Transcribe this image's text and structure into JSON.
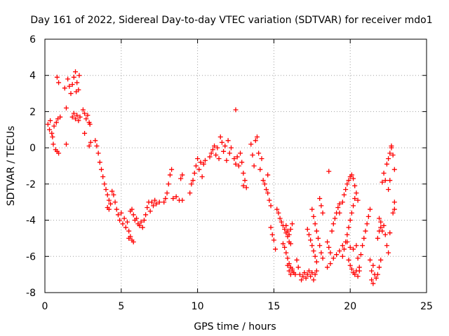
{
  "chart_data": {
    "type": "scatter",
    "title": "Day 161 of 2022, Sidereal Day-to-day VTEC variation (SDTVAR) for receiver mdo1",
    "xlabel": "GPS time / hours",
    "ylabel": "SDTVAR / TECUs",
    "xlim": [
      0,
      25
    ],
    "ylim": [
      -8,
      6
    ],
    "xticks": [
      0,
      5,
      10,
      15,
      20,
      25
    ],
    "yticks": [
      -8,
      -6,
      -4,
      -2,
      0,
      2,
      4,
      6
    ],
    "grid": true,
    "marker": "+",
    "color": "#ff0000",
    "series": [
      {
        "name": "SDTVAR",
        "points": [
          [
            0.2,
            1.3
          ],
          [
            0.3,
            1.0
          ],
          [
            0.35,
            1.5
          ],
          [
            0.45,
            0.8
          ],
          [
            0.5,
            0.6
          ],
          [
            0.55,
            0.2
          ],
          [
            0.6,
            1.2
          ],
          [
            0.7,
            -0.1
          ],
          [
            0.75,
            1.4
          ],
          [
            0.8,
            -0.2
          ],
          [
            0.85,
            1.6
          ],
          [
            0.9,
            -0.3
          ],
          [
            1.0,
            1.7
          ],
          [
            0.8,
            3.9
          ],
          [
            0.9,
            3.6
          ],
          [
            1.3,
            3.3
          ],
          [
            1.4,
            2.2
          ],
          [
            1.4,
            0.2
          ],
          [
            1.5,
            3.8
          ],
          [
            1.6,
            3.4
          ],
          [
            1.7,
            3.0
          ],
          [
            1.8,
            3.5
          ],
          [
            1.9,
            3.9
          ],
          [
            2.0,
            4.2
          ],
          [
            2.05,
            3.1
          ],
          [
            2.1,
            3.6
          ],
          [
            2.2,
            3.2
          ],
          [
            2.25,
            4.0
          ],
          [
            1.8,
            1.7
          ],
          [
            1.9,
            1.9
          ],
          [
            2.0,
            1.6
          ],
          [
            2.1,
            1.8
          ],
          [
            2.2,
            1.5
          ],
          [
            2.3,
            1.7
          ],
          [
            2.5,
            2.1
          ],
          [
            2.6,
            1.9
          ],
          [
            2.7,
            1.6
          ],
          [
            2.8,
            1.8
          ],
          [
            2.9,
            1.4
          ],
          [
            2.95,
            1.3
          ],
          [
            2.6,
            0.8
          ],
          [
            2.9,
            0.1
          ],
          [
            3.0,
            0.3
          ],
          [
            3.3,
            0.4
          ],
          [
            3.4,
            0.1
          ],
          [
            3.5,
            -0.3
          ],
          [
            3.6,
            -0.8
          ],
          [
            3.7,
            -1.2
          ],
          [
            3.8,
            -1.6
          ],
          [
            3.9,
            -2.0
          ],
          [
            4.0,
            -2.3
          ],
          [
            4.1,
            -2.6
          ],
          [
            4.2,
            -2.9
          ],
          [
            4.3,
            -3.1
          ],
          [
            4.4,
            -2.4
          ],
          [
            4.5,
            -2.6
          ],
          [
            4.6,
            -3.0
          ],
          [
            4.7,
            -3.4
          ],
          [
            4.8,
            -3.7
          ],
          [
            4.9,
            -4.0
          ],
          [
            5.0,
            -3.6
          ],
          [
            5.1,
            -4.2
          ],
          [
            5.2,
            -3.9
          ],
          [
            5.3,
            -4.4
          ],
          [
            5.4,
            -4.1
          ],
          [
            5.5,
            -4.6
          ],
          [
            4.1,
            -3.3
          ],
          [
            4.2,
            -3.4
          ],
          [
            5.5,
            -5.0
          ],
          [
            5.6,
            -4.9
          ],
          [
            5.7,
            -5.1
          ],
          [
            5.8,
            -5.2
          ],
          [
            5.6,
            -3.5
          ],
          [
            5.7,
            -3.4
          ],
          [
            5.8,
            -3.7
          ],
          [
            5.9,
            -4.0
          ],
          [
            6.0,
            -3.9
          ],
          [
            6.1,
            -4.2
          ],
          [
            6.2,
            -4.3
          ],
          [
            6.3,
            -4.1
          ],
          [
            6.4,
            -4.4
          ],
          [
            6.5,
            -4.0
          ],
          [
            6.6,
            -3.7
          ],
          [
            6.7,
            -3.3
          ],
          [
            6.8,
            -3.0
          ],
          [
            6.9,
            -3.5
          ],
          [
            7.0,
            -3.0
          ],
          [
            7.1,
            -3.2
          ],
          [
            7.2,
            -2.9
          ],
          [
            7.3,
            -3.1
          ],
          [
            7.5,
            -3.0
          ],
          [
            7.8,
            -3.0
          ],
          [
            7.9,
            -2.8
          ],
          [
            8.0,
            -2.5
          ],
          [
            8.1,
            -2.0
          ],
          [
            8.2,
            -1.5
          ],
          [
            8.3,
            -1.2
          ],
          [
            8.4,
            -2.8
          ],
          [
            8.6,
            -2.7
          ],
          [
            8.8,
            -2.9
          ],
          [
            9.0,
            -2.9
          ],
          [
            8.9,
            -1.7
          ],
          [
            9.0,
            -1.5
          ],
          [
            9.5,
            -2.5
          ],
          [
            9.6,
            -2.0
          ],
          [
            9.7,
            -1.8
          ],
          [
            9.8,
            -1.4
          ],
          [
            9.9,
            -1.0
          ],
          [
            10.0,
            -0.6
          ],
          [
            10.1,
            -1.2
          ],
          [
            10.2,
            -0.8
          ],
          [
            10.3,
            -1.6
          ],
          [
            10.4,
            -0.9
          ],
          [
            10.5,
            -0.7
          ],
          [
            10.8,
            -0.5
          ],
          [
            10.9,
            -0.3
          ],
          [
            11.0,
            -0.1
          ],
          [
            11.1,
            0.1
          ],
          [
            11.2,
            -0.4
          ],
          [
            11.3,
            0.0
          ],
          [
            11.4,
            -0.6
          ],
          [
            11.5,
            0.6
          ],
          [
            11.6,
            0.3
          ],
          [
            11.7,
            -0.2
          ],
          [
            11.8,
            0.1
          ],
          [
            11.9,
            -0.7
          ],
          [
            12.0,
            0.4
          ],
          [
            12.1,
            -0.3
          ],
          [
            12.2,
            0.0
          ],
          [
            12.5,
            2.1
          ],
          [
            12.4,
            -0.6
          ],
          [
            12.5,
            -0.9
          ],
          [
            12.6,
            -0.5
          ],
          [
            12.7,
            -1.0
          ],
          [
            12.8,
            -0.3
          ],
          [
            12.9,
            -0.8
          ],
          [
            13.0,
            -1.4
          ],
          [
            13.1,
            -1.8
          ],
          [
            13.2,
            -2.2
          ],
          [
            13.0,
            -2.1
          ],
          [
            13.5,
            0.2
          ],
          [
            13.6,
            -0.4
          ],
          [
            13.7,
            -1.0
          ],
          [
            13.8,
            0.4
          ],
          [
            13.9,
            0.6
          ],
          [
            14.0,
            -0.3
          ],
          [
            14.1,
            -1.2
          ],
          [
            14.2,
            -0.6
          ],
          [
            14.3,
            -1.8
          ],
          [
            14.4,
            -2.0
          ],
          [
            14.5,
            -2.3
          ],
          [
            14.6,
            -1.5
          ],
          [
            14.6,
            -2.5
          ],
          [
            14.7,
            -2.9
          ],
          [
            14.8,
            -3.2
          ],
          [
            14.8,
            -4.4
          ],
          [
            14.9,
            -4.8
          ],
          [
            15.0,
            -5.1
          ],
          [
            15.1,
            -5.6
          ],
          [
            15.2,
            -3.4
          ],
          [
            15.3,
            -3.6
          ],
          [
            15.4,
            -3.9
          ],
          [
            15.5,
            -4.1
          ],
          [
            15.6,
            -4.3
          ],
          [
            15.7,
            -4.5
          ],
          [
            15.8,
            -4.7
          ],
          [
            15.9,
            -4.9
          ],
          [
            16.0,
            -5.2
          ],
          [
            16.1,
            -5.3
          ],
          [
            15.6,
            -5.3
          ],
          [
            15.7,
            -5.5
          ],
          [
            15.8,
            -5.8
          ],
          [
            15.9,
            -6.1
          ],
          [
            16.0,
            -6.4
          ],
          [
            16.1,
            -6.6
          ],
          [
            16.2,
            -6.8
          ],
          [
            16.3,
            -6.9
          ],
          [
            16.4,
            -7.0
          ],
          [
            15.8,
            -4.3
          ],
          [
            15.9,
            -4.6
          ],
          [
            16.0,
            -4.8
          ],
          [
            16.1,
            -4.5
          ],
          [
            16.2,
            -4.2
          ],
          [
            15.9,
            -6.5
          ],
          [
            16.0,
            -6.8
          ],
          [
            16.1,
            -7.0
          ],
          [
            16.2,
            -6.7
          ],
          [
            16.5,
            -6.2
          ],
          [
            16.6,
            -6.6
          ],
          [
            16.7,
            -7.0
          ],
          [
            16.8,
            -7.3
          ],
          [
            16.9,
            -7.1
          ],
          [
            17.0,
            -6.9
          ],
          [
            17.1,
            -7.2
          ],
          [
            17.2,
            -7.0
          ],
          [
            17.3,
            -6.8
          ],
          [
            17.4,
            -7.1
          ],
          [
            17.5,
            -6.9
          ],
          [
            17.6,
            -7.3
          ],
          [
            17.7,
            -7.0
          ],
          [
            17.8,
            -6.8
          ],
          [
            17.2,
            -4.5
          ],
          [
            17.3,
            -4.8
          ],
          [
            17.4,
            -5.1
          ],
          [
            17.5,
            -5.4
          ],
          [
            17.6,
            -5.7
          ],
          [
            17.7,
            -6.0
          ],
          [
            17.8,
            -6.3
          ],
          [
            17.5,
            -3.4
          ],
          [
            17.6,
            -3.8
          ],
          [
            17.7,
            -4.2
          ],
          [
            17.8,
            -4.6
          ],
          [
            17.9,
            -5.0
          ],
          [
            18.0,
            -5.4
          ],
          [
            18.1,
            -5.8
          ],
          [
            18.2,
            -6.1
          ],
          [
            18.0,
            -2.8
          ],
          [
            18.1,
            -3.2
          ],
          [
            18.2,
            -3.6
          ],
          [
            18.6,
            -1.3
          ],
          [
            18.5,
            -5.2
          ],
          [
            18.6,
            -5.5
          ],
          [
            18.7,
            -5.8
          ],
          [
            18.8,
            -4.6
          ],
          [
            18.9,
            -4.2
          ],
          [
            19.0,
            -3.9
          ],
          [
            19.1,
            -3.6
          ],
          [
            19.2,
            -3.3
          ],
          [
            19.3,
            -3.1
          ],
          [
            19.3,
            -3.6
          ],
          [
            19.5,
            -3.0
          ],
          [
            19.6,
            -2.6
          ],
          [
            19.7,
            -2.3
          ],
          [
            19.8,
            -2.0
          ],
          [
            19.9,
            -1.8
          ],
          [
            20.0,
            -1.6
          ],
          [
            20.1,
            -1.5
          ],
          [
            20.2,
            -1.7
          ],
          [
            20.3,
            -2.1
          ],
          [
            20.4,
            -2.5
          ],
          [
            20.5,
            -2.9
          ],
          [
            19.5,
            -6.0
          ],
          [
            19.6,
            -5.6
          ],
          [
            19.7,
            -5.2
          ],
          [
            19.8,
            -4.8
          ],
          [
            19.9,
            -4.4
          ],
          [
            20.0,
            -4.0
          ],
          [
            20.1,
            -3.6
          ],
          [
            20.2,
            -3.2
          ],
          [
            20.3,
            -2.8
          ],
          [
            19.9,
            -6.2
          ],
          [
            20.0,
            -6.5
          ],
          [
            20.1,
            -6.7
          ],
          [
            20.2,
            -6.9
          ],
          [
            20.3,
            -7.0
          ],
          [
            20.4,
            -6.8
          ],
          [
            20.5,
            -7.1
          ],
          [
            20.6,
            -6.8
          ],
          [
            18.5,
            -6.6
          ],
          [
            18.7,
            -6.4
          ],
          [
            18.9,
            -6.1
          ],
          [
            19.1,
            -5.9
          ],
          [
            19.3,
            -5.7
          ],
          [
            19.5,
            -5.4
          ],
          [
            19.8,
            -5.2
          ],
          [
            20.0,
            -5.5
          ],
          [
            20.2,
            -5.6
          ],
          [
            20.4,
            -5.4
          ],
          [
            20.5,
            -6.1
          ],
          [
            20.6,
            -6.6
          ],
          [
            20.7,
            -5.9
          ],
          [
            20.8,
            -5.4
          ],
          [
            20.9,
            -5.0
          ],
          [
            21.0,
            -4.6
          ],
          [
            21.1,
            -4.2
          ],
          [
            21.2,
            -3.8
          ],
          [
            21.3,
            -3.4
          ],
          [
            21.3,
            -6.2
          ],
          [
            21.4,
            -6.8
          ],
          [
            21.5,
            -6.5
          ],
          [
            21.6,
            -7.0
          ],
          [
            21.7,
            -7.2
          ],
          [
            21.8,
            -7.0
          ],
          [
            21.9,
            -6.6
          ],
          [
            22.0,
            -6.2
          ],
          [
            21.8,
            -5.0
          ],
          [
            21.9,
            -4.6
          ],
          [
            22.0,
            -4.4
          ],
          [
            22.1,
            -4.6
          ],
          [
            22.2,
            -4.3
          ],
          [
            22.3,
            -4.8
          ],
          [
            22.4,
            -5.4
          ],
          [
            22.5,
            -5.8
          ],
          [
            22.6,
            -4.7
          ],
          [
            21.5,
            -7.5
          ],
          [
            21.4,
            -7.3
          ],
          [
            21.9,
            -3.9
          ],
          [
            22.0,
            -4.1
          ],
          [
            22.1,
            -1.9
          ],
          [
            22.2,
            -1.4
          ],
          [
            22.3,
            -1.8
          ],
          [
            22.4,
            -0.9
          ],
          [
            22.5,
            -0.6
          ],
          [
            22.6,
            -0.3
          ],
          [
            22.7,
            0.0
          ],
          [
            22.7,
            0.1
          ],
          [
            22.8,
            -0.4
          ],
          [
            22.9,
            -1.2
          ],
          [
            22.5,
            -2.3
          ],
          [
            22.6,
            -1.8
          ],
          [
            22.9,
            -3.0
          ],
          [
            22.8,
            -3.6
          ],
          [
            22.9,
            -3.4
          ]
        ]
      }
    ]
  }
}
